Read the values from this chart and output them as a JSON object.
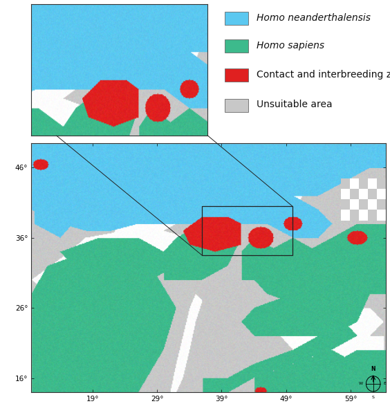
{
  "legend_items": [
    {
      "label": "Homo neanderthalensis",
      "color": "#5bc8f0",
      "italic": true
    },
    {
      "label": "Homo sapiens",
      "color": "#3dba8c",
      "italic": true
    },
    {
      "label": "Contact and interbreeding zone",
      "color": "#e02020",
      "italic": false
    },
    {
      "label": "Unsuitable area",
      "color": "#c8c8c8",
      "italic": false
    }
  ],
  "colors": {
    "neanderthal": "#5bc8f0",
    "sapiens": "#3dba8c",
    "contact": "#e02020",
    "unsuitable": "#c8c8c8",
    "water": "#ffffff"
  },
  "main_xlim": [
    9.5,
    64.5
  ],
  "main_ylim": [
    14.0,
    49.5
  ],
  "main_xticks": [
    19,
    29,
    39,
    49,
    59
  ],
  "main_yticks": [
    16,
    26,
    36,
    46
  ],
  "figure_bg": "#ffffff",
  "font_size_ticks": 7.5,
  "font_size_legend": 10
}
